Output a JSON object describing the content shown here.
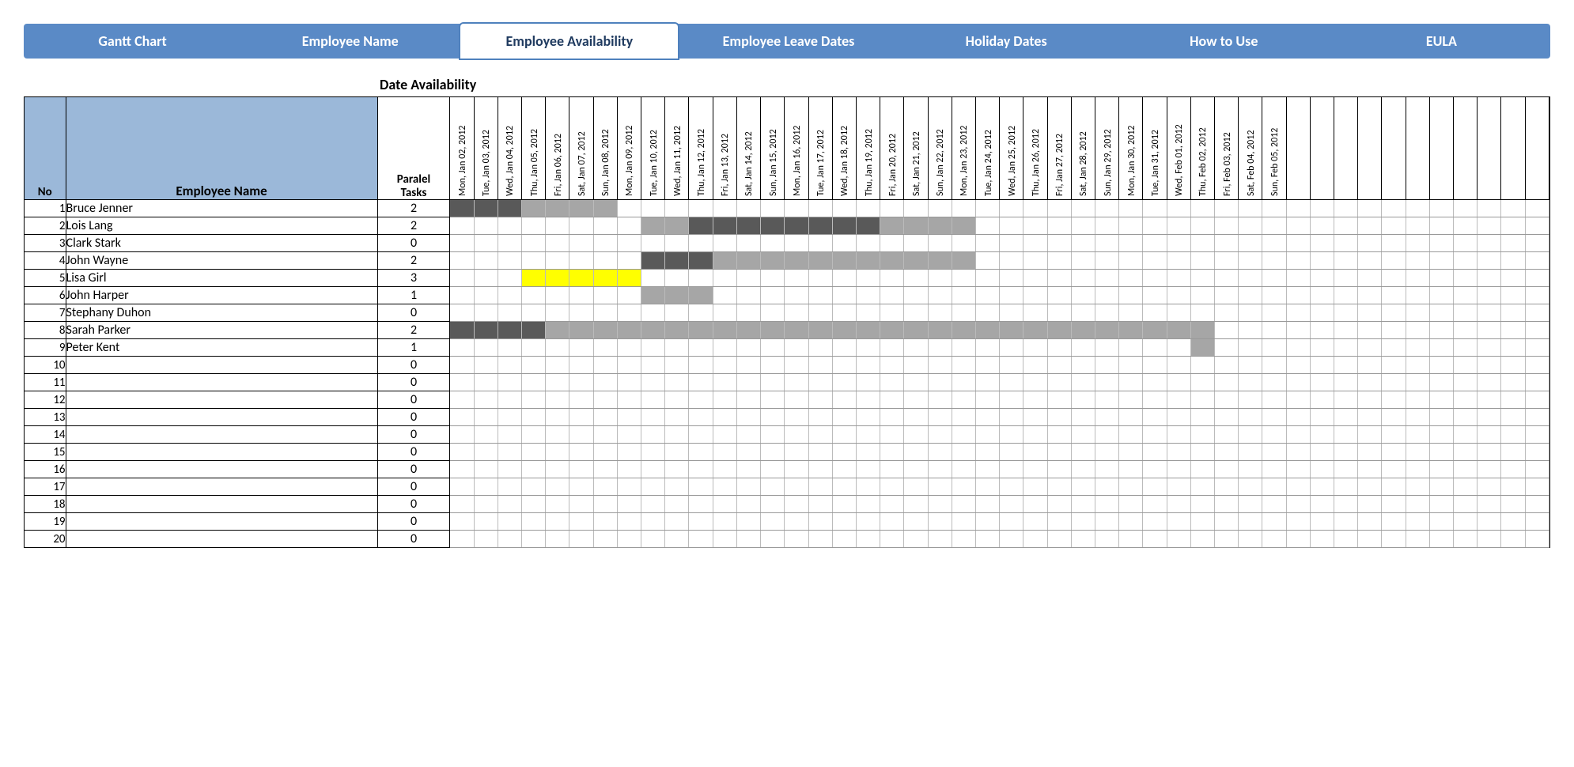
{
  "colors": {
    "tabbar_bg": "#5a8ac6",
    "tab_active_bg": "#ffffff",
    "tab_active_text": "#1f3a5f",
    "tab_text": "#ffffff",
    "header_cell_bg": "#9bb8d9",
    "bar_dark": "#595959",
    "bar_light": "#a6a6a6",
    "bar_yellow": "#ffff00",
    "grid_border": "#000000",
    "row_border": "#999999"
  },
  "tabs": [
    {
      "label": "Gantt Chart",
      "active": false
    },
    {
      "label": "Employee Name",
      "active": false
    },
    {
      "label": "Employee Availability",
      "active": true
    },
    {
      "label": "Employee Leave Dates",
      "active": false
    },
    {
      "label": "Holiday Dates",
      "active": false
    },
    {
      "label": "How to Use",
      "active": false
    },
    {
      "label": "EULA",
      "active": false
    }
  ],
  "section_title": "Date Availability",
  "headers": {
    "no": "No",
    "name": "Employee Name",
    "tasks": "Paralel Tasks"
  },
  "dates": [
    "Mon, Jan 02, 2012",
    "Tue, Jan 03, 2012",
    "Wed, Jan 04, 2012",
    "Thu, Jan 05, 2012",
    "Fri, Jan 06, 2012",
    "Sat, Jan 07, 2012",
    "Sun, Jan 08, 2012",
    "Mon, Jan 09, 2012",
    "Tue, Jan 10, 2012",
    "Wed, Jan 11, 2012",
    "Thu, Jan 12, 2012",
    "Fri, Jan 13, 2012",
    "Sat, Jan 14, 2012",
    "Sun, Jan 15, 2012",
    "Mon, Jan 16, 2012",
    "Tue, Jan 17, 2012",
    "Wed, Jan 18, 2012",
    "Thu, Jan 19, 2012",
    "Fri, Jan 20, 2012",
    "Sat, Jan 21, 2012",
    "Sun, Jan 22, 2012",
    "Mon, Jan 23, 2012",
    "Tue, Jan 24, 2012",
    "Wed, Jan 25, 2012",
    "Thu, Jan 26, 2012",
    "Fri, Jan 27, 2012",
    "Sat, Jan 28, 2012",
    "Sun, Jan 29, 2012",
    "Mon, Jan 30, 2012",
    "Tue, Jan 31, 2012",
    "Wed, Feb 01, 2012",
    "Thu, Feb 02, 2012",
    "Fri, Feb 03, 2012",
    "Sat, Feb 04, 2012",
    "Sun, Feb 05, 2012"
  ],
  "pad_cols": 11,
  "rows": [
    {
      "no": 1,
      "name": "Bruce Jenner",
      "tasks": 2,
      "bars": [
        {
          "start": 0,
          "end": 3,
          "color": "#595959"
        },
        {
          "start": 3,
          "end": 7,
          "color": "#a6a6a6"
        }
      ]
    },
    {
      "no": 2,
      "name": "Lois Lang",
      "tasks": 2,
      "bars": [
        {
          "start": 8,
          "end": 10,
          "color": "#a6a6a6"
        },
        {
          "start": 10,
          "end": 18,
          "color": "#595959"
        },
        {
          "start": 18,
          "end": 22,
          "color": "#a6a6a6"
        }
      ]
    },
    {
      "no": 3,
      "name": "Clark Stark",
      "tasks": 0,
      "bars": []
    },
    {
      "no": 4,
      "name": "John Wayne",
      "tasks": 2,
      "bars": [
        {
          "start": 8,
          "end": 11,
          "color": "#595959"
        },
        {
          "start": 11,
          "end": 22,
          "color": "#a6a6a6"
        }
      ]
    },
    {
      "no": 5,
      "name": "Lisa Girl",
      "tasks": 3,
      "bars": [
        {
          "start": 3,
          "end": 8,
          "color": "#ffff00"
        }
      ]
    },
    {
      "no": 6,
      "name": "John Harper",
      "tasks": 1,
      "bars": [
        {
          "start": 8,
          "end": 11,
          "color": "#a6a6a6"
        }
      ]
    },
    {
      "no": 7,
      "name": "Stephany Duhon",
      "tasks": 0,
      "bars": []
    },
    {
      "no": 8,
      "name": "Sarah Parker",
      "tasks": 2,
      "bars": [
        {
          "start": 0,
          "end": 4,
          "color": "#595959"
        },
        {
          "start": 4,
          "end": 32,
          "color": "#a6a6a6"
        }
      ]
    },
    {
      "no": 9,
      "name": "Peter Kent",
      "tasks": 1,
      "bars": [
        {
          "start": 31,
          "end": 32,
          "color": "#a6a6a6"
        }
      ]
    },
    {
      "no": 10,
      "name": "",
      "tasks": 0,
      "bars": []
    },
    {
      "no": 11,
      "name": "",
      "tasks": 0,
      "bars": []
    },
    {
      "no": 12,
      "name": "",
      "tasks": 0,
      "bars": []
    },
    {
      "no": 13,
      "name": "",
      "tasks": 0,
      "bars": []
    },
    {
      "no": 14,
      "name": "",
      "tasks": 0,
      "bars": []
    },
    {
      "no": 15,
      "name": "",
      "tasks": 0,
      "bars": []
    },
    {
      "no": 16,
      "name": "",
      "tasks": 0,
      "bars": []
    },
    {
      "no": 17,
      "name": "",
      "tasks": 0,
      "bars": []
    },
    {
      "no": 18,
      "name": "",
      "tasks": 0,
      "bars": []
    },
    {
      "no": 19,
      "name": "",
      "tasks": 0,
      "bars": []
    },
    {
      "no": 20,
      "name": "",
      "tasks": 0,
      "bars": []
    }
  ]
}
